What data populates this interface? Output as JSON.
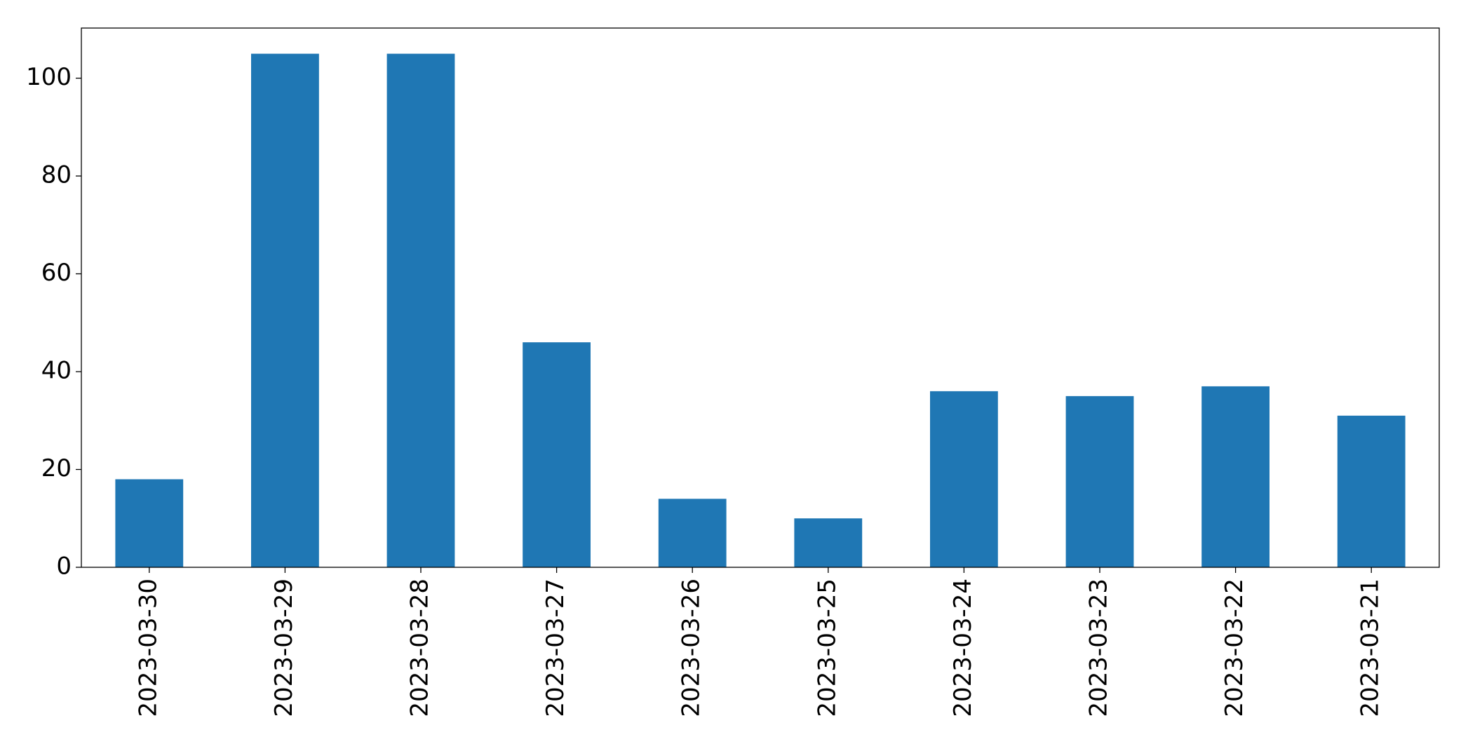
{
  "chart_data": {
    "type": "bar",
    "categories": [
      "2023-03-30",
      "2023-03-29",
      "2023-03-28",
      "2023-03-27",
      "2023-03-26",
      "2023-03-25",
      "2023-03-24",
      "2023-03-23",
      "2023-03-22",
      "2023-03-21"
    ],
    "values": [
      18,
      105,
      105,
      46,
      14,
      10,
      36,
      35,
      37,
      31
    ],
    "color": "#1f77b4",
    "ylim": [
      0,
      110.25
    ],
    "yticks": [
      0,
      20,
      40,
      60,
      80,
      100
    ],
    "grid": false
  }
}
